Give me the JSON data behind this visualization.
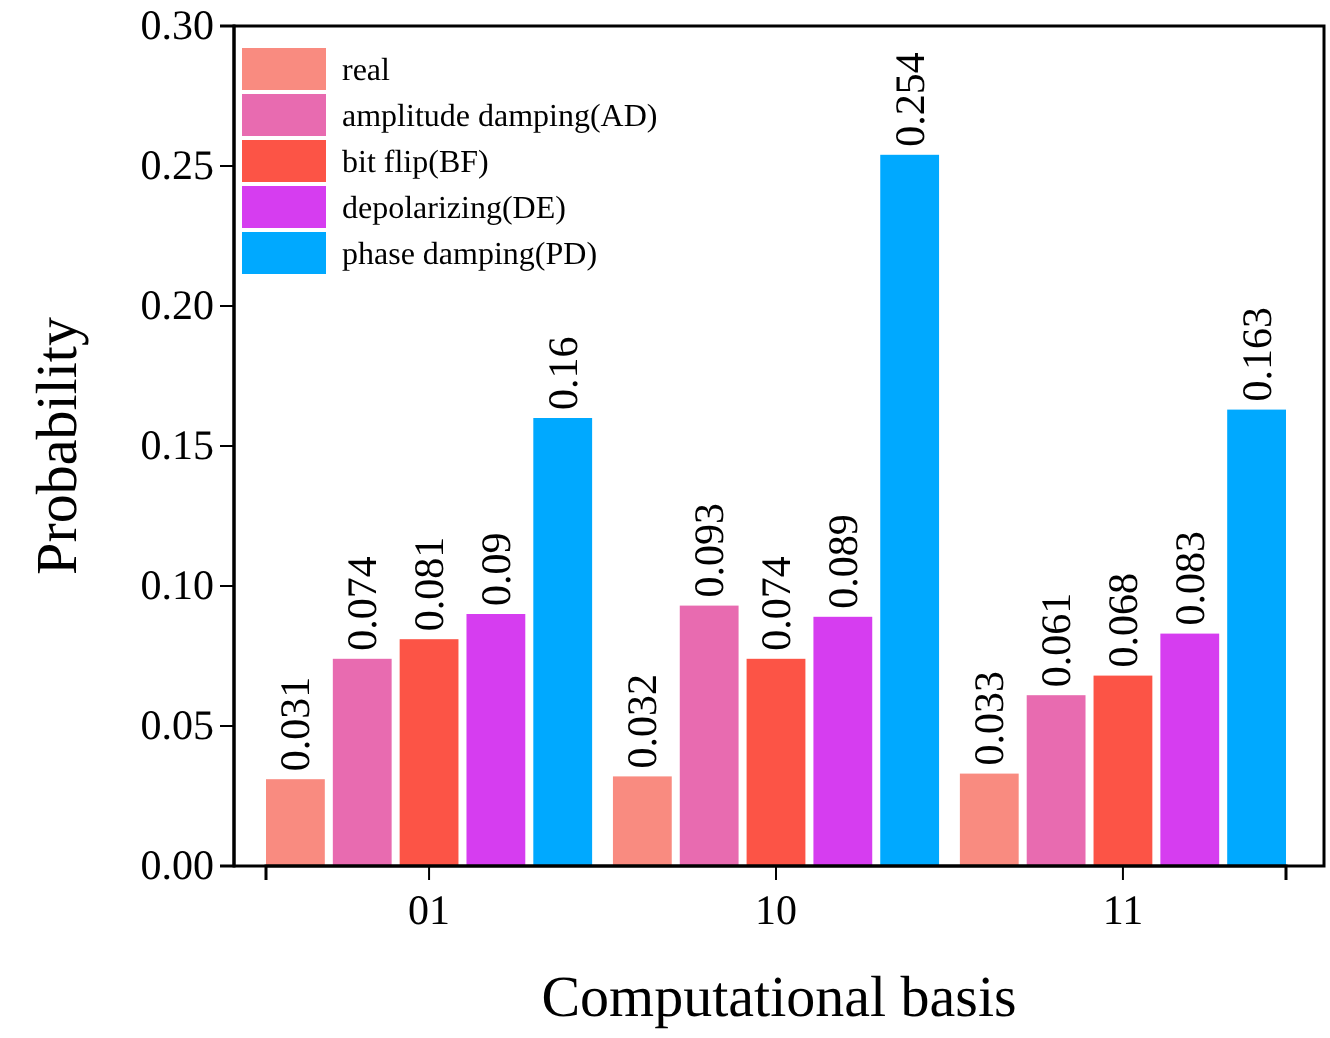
{
  "chart_data": {
    "type": "bar",
    "xlabel": "Computational basis",
    "ylabel": "Probability",
    "categories": [
      "01",
      "10",
      "11"
    ],
    "series": [
      {
        "name": "real",
        "color": "#f98b80",
        "values": [
          0.031,
          0.032,
          0.033
        ]
      },
      {
        "name": "amplitude damping(AD)",
        "color": "#e86bb0",
        "values": [
          0.074,
          0.093,
          0.061
        ]
      },
      {
        "name": "bit flip(BF)",
        "color": "#fc5446",
        "values": [
          0.081,
          0.074,
          0.068
        ]
      },
      {
        "name": "depolarizing(DE)",
        "color": "#d63df0",
        "values": [
          0.09,
          0.089,
          0.083
        ]
      },
      {
        "name": "phase damping(PD)",
        "color": "#00a9ff",
        "values": [
          0.16,
          0.254,
          0.163
        ]
      }
    ],
    "ylim": [
      0,
      0.3
    ],
    "yticks": [
      {
        "value": 0,
        "label": "0.00"
      },
      {
        "value": 0.05,
        "label": "0.05"
      },
      {
        "value": 0.1,
        "label": "0.10"
      },
      {
        "value": 0.15,
        "label": "0.15"
      },
      {
        "value": 0.2,
        "label": "0.20"
      },
      {
        "value": 0.25,
        "label": "0.25"
      },
      {
        "value": 0.3,
        "label": "0.30"
      }
    ],
    "data_labels": true,
    "legend": "top left",
    "grid": false
  }
}
